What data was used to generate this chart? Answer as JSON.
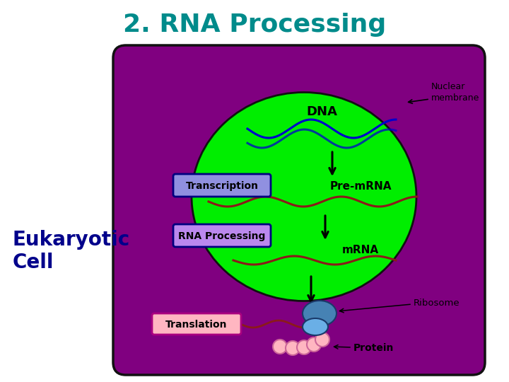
{
  "title": "2. RNA Processing",
  "title_color": "#008B8B",
  "title_fontsize": 26,
  "title_fontweight": "bold",
  "eukaryotic_label": "Eukaryotic\nCell",
  "eukaryotic_color": "#00008B",
  "eukaryotic_fontsize": 20,
  "eukaryotic_fontweight": "bold",
  "cell_bg_color": "#800080",
  "nucleus_color": "#00EE00",
  "nucleus_edge": "#111111",
  "dna_color": "#0000CD",
  "rna_color": "#8B1A1A",
  "transcription_box_color": "#9090E0",
  "transcription_box_edge": "#000080",
  "rna_processing_box_color": "#BB88EE",
  "rna_processing_box_edge": "#000080",
  "translation_box_color": "#FFB6C1",
  "translation_box_edge": "#AA0080",
  "arrow_color": "#000000",
  "ribosome_top_color": "#4682B4",
  "ribosome_bot_color": "#6AAFE6",
  "protein_color": "#FFB6C1",
  "protein_edge": "#CC6699",
  "label_dna": "DNA",
  "label_premrna": "Pre-mRNA",
  "label_mrna": "mRNA",
  "label_transcription": "Transcription",
  "label_rna_processing": "RNA Processing",
  "label_translation": "Translation",
  "label_nuclear_membrane": "Nuclear\nmembrane",
  "label_ribosome": "Ribosome",
  "label_protein": "Protein",
  "background_color": "#FFFFFF"
}
